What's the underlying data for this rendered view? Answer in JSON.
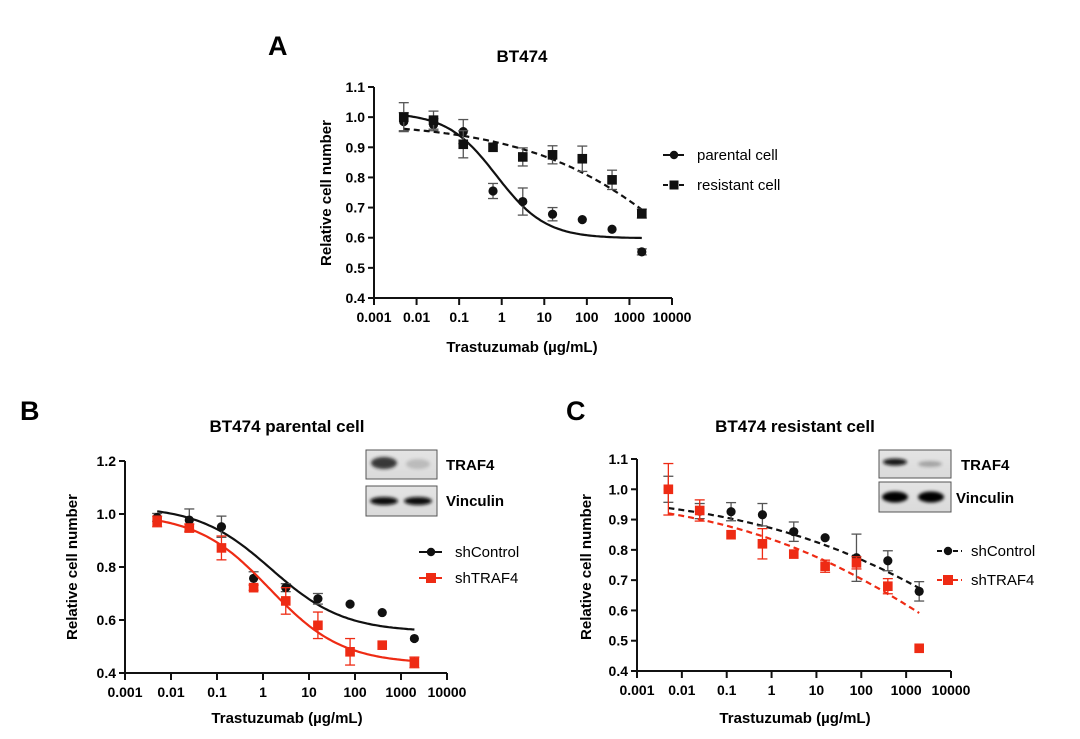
{
  "colors": {
    "black": "#111111",
    "red": "#ee2b14",
    "axis": "#111111"
  },
  "chart_data": [
    {
      "id": "A",
      "panel_label": "A",
      "type": "scatter",
      "title": "BT474",
      "xlabel": "Trastuzumab (µg/mL)",
      "ylabel": "Relative cell number",
      "xscale": "log",
      "xlim": [
        0.001,
        10000
      ],
      "ylim": [
        0.4,
        1.1
      ],
      "xticks": [
        0.001,
        0.01,
        0.1,
        1,
        10,
        100,
        1000,
        10000
      ],
      "xtick_labels": [
        "0.001",
        "0.01",
        "0.1",
        "1",
        "10",
        "100",
        "1000",
        "10000"
      ],
      "yticks": [
        0.4,
        0.5,
        0.6,
        0.7,
        0.8,
        0.9,
        1.0,
        1.1
      ],
      "ytick_labels": [
        "0.4",
        "0.5",
        "0.6",
        "0.7",
        "0.8",
        "0.9",
        "1.0",
        "1.1"
      ],
      "grid": false,
      "legend_position": "right",
      "x": [
        0.005,
        0.025,
        0.125,
        0.625,
        3.125,
        15.625,
        78.125,
        390.625,
        1953.125
      ],
      "series": [
        {
          "name": "parental cell",
          "marker": "circle",
          "color": "#111111",
          "line": "solid",
          "values": [
            0.985,
            0.975,
            0.952,
            0.755,
            0.72,
            0.678,
            0.66,
            0.628,
            0.553
          ],
          "errors": [
            0.03,
            0.02,
            0.04,
            0.025,
            0.045,
            0.022,
            0,
            0,
            0.01
          ],
          "fit": {
            "model": "sigmoid",
            "top": 1.015,
            "bottom": 0.598,
            "ec50": 0.75,
            "hill": 0.75
          }
        },
        {
          "name": "resistant cell",
          "marker": "square",
          "color": "#111111",
          "line": "dashed",
          "values": [
            1.0,
            0.99,
            0.91,
            0.9,
            0.868,
            0.875,
            0.862,
            0.792,
            0.68
          ],
          "errors": [
            0.048,
            0.03,
            0.045,
            0,
            0.03,
            0.03,
            0.042,
            0.032,
            0.015
          ],
          "fit": {
            "model": "sigmoid",
            "top": 0.985,
            "bottom": 0.0,
            "ec50": 100000,
            "hill": 0.22
          }
        }
      ]
    },
    {
      "id": "B",
      "panel_label": "B",
      "type": "scatter",
      "title": "BT474 parental cell",
      "xlabel": "Trastuzumab (µg/mL)",
      "ylabel": "Relative cell number",
      "xscale": "log",
      "xlim": [
        0.001,
        10000
      ],
      "ylim": [
        0.4,
        1.2
      ],
      "xticks": [
        0.001,
        0.01,
        0.1,
        1,
        10,
        100,
        1000,
        10000
      ],
      "xtick_labels": [
        "0.001",
        "0.01",
        "0.1",
        "1",
        "10",
        "100",
        "1000",
        "10000"
      ],
      "yticks": [
        0.4,
        0.6,
        0.8,
        1.0,
        1.2
      ],
      "ytick_labels": [
        "0.4",
        "0.6",
        "0.8",
        "1.0",
        "1.2"
      ],
      "grid": false,
      "legend_position": "right",
      "blot": {
        "labels": [
          "TRAF4",
          "Vinculin"
        ],
        "traf4_intensity": [
          0.85,
          0.15
        ],
        "vinculin_intensity": [
          1.0,
          1.0
        ]
      },
      "x": [
        0.005,
        0.025,
        0.125,
        0.625,
        3.125,
        15.625,
        78.125,
        390.625,
        1953.125
      ],
      "series": [
        {
          "name": "shControl",
          "marker": "circle",
          "color": "#111111",
          "line": "solid",
          "values": [
            0.987,
            0.977,
            0.952,
            0.757,
            0.722,
            0.68,
            0.66,
            0.628,
            0.53
          ],
          "errors": [
            0.015,
            0.042,
            0.04,
            0.025,
            0.015,
            0.02,
            0,
            0,
            0
          ],
          "fit": {
            "model": "sigmoid",
            "top": 1.03,
            "bottom": 0.555,
            "ec50": 1.5,
            "hill": 0.55
          }
        },
        {
          "name": "shTRAF4",
          "marker": "square",
          "color": "#ee2b14",
          "line": "solid",
          "values": [
            0.972,
            0.947,
            0.872,
            0.722,
            0.672,
            0.58,
            0.48,
            0.505,
            0.44
          ],
          "errors": [
            0.02,
            0.015,
            0.045,
            0.01,
            0.05,
            0.05,
            0.05,
            0,
            0.02
          ],
          "fit": {
            "model": "sigmoid",
            "top": 1.0,
            "bottom": 0.435,
            "ec50": 1.4,
            "hill": 0.55
          }
        }
      ]
    },
    {
      "id": "C",
      "panel_label": "C",
      "type": "scatter",
      "title": "BT474 resistant cell",
      "xlabel": "Trastuzumab (µg/mL)",
      "ylabel": "Relative cell number",
      "xscale": "log",
      "xlim": [
        0.001,
        10000
      ],
      "ylim": [
        0.4,
        1.1
      ],
      "xticks": [
        0.001,
        0.01,
        0.1,
        1,
        10,
        100,
        1000,
        10000
      ],
      "xtick_labels": [
        "0.001",
        "0.01",
        "0.1",
        "1",
        "10",
        "100",
        "1000",
        "10000"
      ],
      "yticks": [
        0.4,
        0.5,
        0.6,
        0.7,
        0.8,
        0.9,
        1.0,
        1.1
      ],
      "ytick_labels": [
        "0.4",
        "0.5",
        "0.6",
        "0.7",
        "0.8",
        "0.9",
        "1.0",
        "1.1"
      ],
      "grid": false,
      "legend_position": "right",
      "blot": {
        "labels": [
          "TRAF4",
          "Vinculin"
        ],
        "traf4_intensity": [
          0.95,
          0.25
        ],
        "vinculin_intensity": [
          1.0,
          1.0
        ]
      },
      "x": [
        0.005,
        0.025,
        0.125,
        0.625,
        3.125,
        15.625,
        78.125,
        390.625,
        1953.125
      ],
      "series": [
        {
          "name": "shControl",
          "marker": "circle",
          "color": "#111111",
          "line": "dashed",
          "values": [
            1.0,
            0.928,
            0.926,
            0.916,
            0.86,
            0.84,
            0.774,
            0.764,
            0.663
          ],
          "errors": [
            0.043,
            0.025,
            0.03,
            0.037,
            0.032,
            0,
            0.078,
            0.033,
            0.032
          ],
          "fit": {
            "model": "sigmoid",
            "top": 0.995,
            "bottom": 0.0,
            "ec50": 200000,
            "hill": 0.16
          }
        },
        {
          "name": "shTRAF4",
          "marker": "square",
          "color": "#ee2b14",
          "line": "dashed",
          "values": [
            1.0,
            0.93,
            0.85,
            0.82,
            0.786,
            0.746,
            0.757,
            0.68,
            0.475
          ],
          "errors": [
            0.085,
            0.035,
            0,
            0.05,
            0,
            0.02,
            0.02,
            0.025,
            0
          ],
          "fit": {
            "model": "sigmoid",
            "top": 0.99,
            "bottom": 0.0,
            "ec50": 20000,
            "hill": 0.17
          }
        }
      ]
    }
  ]
}
